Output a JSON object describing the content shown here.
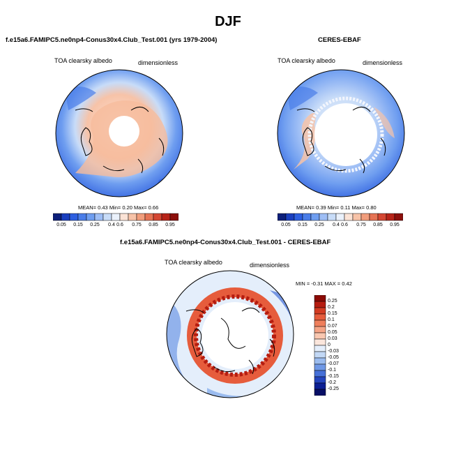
{
  "figure_title": "DJF",
  "panels": {
    "model": {
      "title": "f.e15a6.FAMIPC5.ne0np4-Conus30x4.Club_Test.001 (yrs 1979-2004)",
      "left_label": "TOA clearsky albedo",
      "right_label": "dimensionless",
      "stats": "MEAN=  0.43  Min=  0.20  Max=  0.66"
    },
    "obs": {
      "title": "CERES-EBAF",
      "left_label": "TOA clearsky albedo",
      "right_label": "dimensionless",
      "stats": "MEAN=  0.39  Min=  0.11  Max=  0.80"
    },
    "diff": {
      "title": "f.e15a6.FAMIPC5.ne0np4-Conus30x4.Club_Test.001 - CERES-EBAF",
      "left_label": "TOA clearsky albedo",
      "right_label": "dimensionless",
      "stats": "MIN = -0.31 MAX =  0.42"
    }
  },
  "chart_data": [
    {
      "type": "heatmap",
      "projection": "north polar stereographic",
      "title": "f.e15a6.FAMIPC5.ne0np4-Conus30x4.Club_Test.001 (yrs 1979-2004)",
      "variable": "TOA clearsky albedo",
      "units": "dimensionless",
      "mean": 0.43,
      "min": 0.2,
      "max": 0.66,
      "colorbar": {
        "levels": [
          "0.05",
          "0.15",
          "0.25",
          "0.4",
          "0.6",
          "0.75",
          "0.85",
          "0.95"
        ],
        "colors": [
          "#0d1f7a",
          "#1a3fbf",
          "#2e5fe0",
          "#4a7de8",
          "#6f9ef0",
          "#9ebef5",
          "#c8dcf8",
          "#eaf1fb",
          "#fbe3d6",
          "#f7c3a8",
          "#f19d7c",
          "#e57354",
          "#d44733",
          "#b72419",
          "#8c0f0c"
        ]
      }
    },
    {
      "type": "heatmap",
      "projection": "north polar stereographic",
      "title": "CERES-EBAF",
      "variable": "TOA clearsky albedo",
      "units": "dimensionless",
      "mean": 0.39,
      "min": 0.11,
      "max": 0.8,
      "colorbar": {
        "levels": [
          "0.05",
          "0.15",
          "0.25",
          "0.4",
          "0.6",
          "0.75",
          "0.85",
          "0.95"
        ],
        "colors": [
          "#0d1f7a",
          "#1a3fbf",
          "#2e5fe0",
          "#4a7de8",
          "#6f9ef0",
          "#9ebef5",
          "#c8dcf8",
          "#eaf1fb",
          "#fbe3d6",
          "#f7c3a8",
          "#f19d7c",
          "#e57354",
          "#d44733",
          "#b72419",
          "#8c0f0c"
        ]
      }
    },
    {
      "type": "heatmap",
      "projection": "north polar stereographic",
      "title": "f.e15a6.FAMIPC5.ne0np4-Conus30x4.Club_Test.001 - CERES-EBAF",
      "variable": "TOA clearsky albedo",
      "units": "dimensionless",
      "min": -0.31,
      "max": 0.42,
      "colorbar": {
        "levels": [
          "0.25",
          "0.2",
          "0.15",
          "0.1",
          "0.07",
          "0.05",
          "0.03",
          "0",
          "-0.03",
          "-0.05",
          "-0.07",
          "-0.1",
          "-0.15",
          "-0.2",
          "-0.25"
        ],
        "colors": [
          "#8b0a05",
          "#b51c10",
          "#d33b22",
          "#e65c3c",
          "#ef7f5c",
          "#f5a486",
          "#f9c7b0",
          "#fbe6dc",
          "#e4eefb",
          "#c2d8f5",
          "#9bbcef",
          "#6f98e6",
          "#4670d8",
          "#2444bd",
          "#0c1f93",
          "#070f66"
        ]
      }
    }
  ]
}
